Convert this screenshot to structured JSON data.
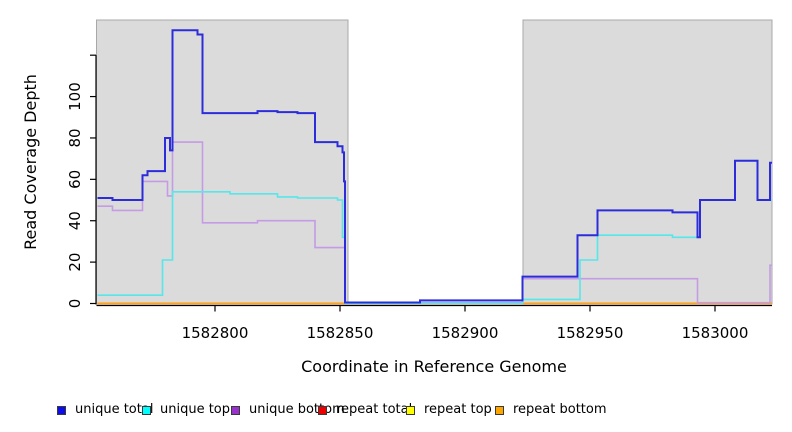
{
  "chart_data": {
    "type": "line",
    "subtype": "step",
    "title": "",
    "xlabel": "Coordinate in Reference Genome",
    "ylabel": "Read Coverage Depth",
    "xlim": [
      1582752.6,
      1583022.8
    ],
    "ylim": [
      0,
      137
    ],
    "grid": false,
    "background": "#ffffff",
    "x_ticks": {
      "values": [
        1582800,
        1582850,
        1582900,
        1582950,
        1583000
      ],
      "labels": [
        "1582800",
        "1582850",
        "1582900",
        "1582950",
        "1583000"
      ]
    },
    "y_ticks": {
      "values": [
        0,
        20,
        40,
        60,
        80,
        100,
        120
      ],
      "labels": [
        "0",
        "20",
        "40",
        "60",
        "80",
        "100",
        ""
      ]
    },
    "shaded_regions": [
      {
        "x1": 1582752.6,
        "x2": 1582853.2,
        "fill": "#DBDBDB",
        "stroke": "#A8A8A8"
      },
      {
        "x1": 1582923.2,
        "x2": 1583022.8,
        "fill": "#DBDBDB",
        "stroke": "#A8A8A8"
      }
    ],
    "series": [
      {
        "id": "repeat-top",
        "name": "repeat top",
        "color": "#FFFF00",
        "width": 1.6,
        "points": [
          [
            1582753,
            0
          ]
        ]
      },
      {
        "id": "repeat-total",
        "name": "repeat total",
        "color": "#DD0000",
        "width": 1.6,
        "points": [
          [
            1582753,
            0
          ]
        ]
      },
      {
        "id": "repeat-bottom",
        "name": "repeat bottom",
        "color": "#FFA318",
        "width": 1.8,
        "points": [
          [
            1582753,
            0
          ]
        ]
      },
      {
        "id": "unique-bottom",
        "name": "unique bottom",
        "color": "#C49BE4",
        "width": 1.6,
        "points": [
          [
            1582753,
            47
          ],
          [
            1582759,
            45
          ],
          [
            1582771,
            59
          ],
          [
            1582781,
            52
          ],
          [
            1582783,
            78
          ],
          [
            1582795,
            39
          ],
          [
            1582817,
            40
          ],
          [
            1582840,
            27
          ],
          [
            1582852,
            0.5
          ],
          [
            1582923,
            12
          ],
          [
            1582993,
            0.4
          ],
          [
            1583022,
            18.5
          ]
        ]
      },
      {
        "id": "unique-top",
        "name": "unique top",
        "color": "#55E7EA",
        "width": 1.6,
        "points": [
          [
            1582753,
            4
          ],
          [
            1582779,
            21
          ],
          [
            1582783,
            54
          ],
          [
            1582806,
            53
          ],
          [
            1582825,
            51.5
          ],
          [
            1582833,
            51
          ],
          [
            1582849,
            50
          ],
          [
            1582851,
            32
          ],
          [
            1582852,
            0
          ],
          [
            1582923,
            2
          ],
          [
            1582946,
            21
          ],
          [
            1582953,
            33
          ],
          [
            1582983,
            32
          ],
          [
            1582994,
            50
          ],
          [
            1583008,
            69
          ],
          [
            1583017,
            50
          ]
        ]
      },
      {
        "id": "unique-total",
        "name": "unique total",
        "color": "#2C2CDB",
        "width": 2,
        "points": [
          [
            1582753,
            51
          ],
          [
            1582759,
            50
          ],
          [
            1582771,
            62
          ],
          [
            1582773,
            64
          ],
          [
            1582780,
            80
          ],
          [
            1582782,
            74
          ],
          [
            1582783,
            132
          ],
          [
            1582793,
            130
          ],
          [
            1582795,
            92
          ],
          [
            1582817,
            93
          ],
          [
            1582825,
            92.5
          ],
          [
            1582833,
            92
          ],
          [
            1582840,
            78
          ],
          [
            1582849,
            76
          ],
          [
            1582851,
            73
          ],
          [
            1582851.6,
            59
          ],
          [
            1582852,
            0.5
          ],
          [
            1582882,
            1.5
          ],
          [
            1582923,
            13
          ],
          [
            1582945,
            33
          ],
          [
            1582953,
            45
          ],
          [
            1582983,
            44
          ],
          [
            1582993,
            32
          ],
          [
            1582994,
            50
          ],
          [
            1583008,
            69
          ],
          [
            1583017,
            50
          ],
          [
            1583022,
            68
          ]
        ]
      }
    ],
    "legend": {
      "position": "bottom",
      "swatch_border": "#3a3a3a",
      "items": [
        {
          "label": "unique total",
          "color": "#0D0DE8"
        },
        {
          "label": "unique top",
          "color": "#00FFFF"
        },
        {
          "label": "unique bottom",
          "color": "#9932CC"
        },
        {
          "label": "repeat total",
          "color": "#EE0000"
        },
        {
          "label": "repeat top",
          "color": "#FFFF00"
        },
        {
          "label": "repeat bottom",
          "color": "#FFA500"
        }
      ]
    }
  }
}
